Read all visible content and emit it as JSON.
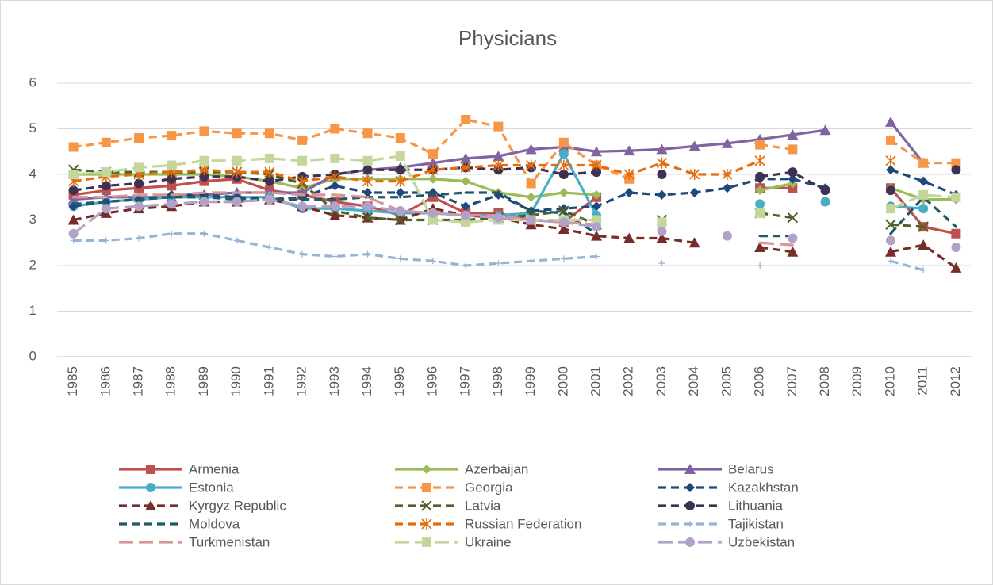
{
  "chart_data": {
    "type": "line",
    "title": "Physicians",
    "categories": [
      "1985",
      "1986",
      "1987",
      "1988",
      "1989",
      "1990",
      "1991",
      "1992",
      "1993",
      "1994",
      "1995",
      "1996",
      "1997",
      "1998",
      "1999",
      "2000",
      "2001",
      "2002",
      "2003",
      "2004",
      "2005",
      "2006",
      "2007",
      "2008",
      "2009",
      "2010",
      "2011",
      "2012"
    ],
    "ylim": [
      0,
      6
    ],
    "yticks": [
      0,
      1,
      2,
      3,
      4,
      5,
      6
    ],
    "grid": true,
    "legend": "bottom",
    "series": [
      {
        "name": "Armenia",
        "color": "#c0504d",
        "dash": "solid",
        "marker": "square",
        "values": [
          3.55,
          3.65,
          3.7,
          3.75,
          3.85,
          3.9,
          3.65,
          3.55,
          3.4,
          3.3,
          3.1,
          3.5,
          3.15,
          3.15,
          3.0,
          2.95,
          3.5,
          null,
          null,
          null,
          null,
          3.7,
          3.7,
          null,
          null,
          3.7,
          2.85,
          2.7
        ]
      },
      {
        "name": "Azerbaijan",
        "color": "#9bbb59",
        "dash": "solid",
        "marker": "diamond",
        "values": [
          4.0,
          4.0,
          4.0,
          4.0,
          4.0,
          3.95,
          3.85,
          3.7,
          3.9,
          3.9,
          3.9,
          3.9,
          3.85,
          3.6,
          3.5,
          3.6,
          3.55,
          null,
          null,
          null,
          null,
          3.65,
          3.8,
          null,
          null,
          3.7,
          3.45,
          3.45
        ]
      },
      {
        "name": "Belarus",
        "color": "#8064a2",
        "dash": "solid",
        "marker": "triangle",
        "values": [
          3.45,
          3.5,
          3.5,
          3.5,
          3.55,
          3.6,
          3.6,
          3.6,
          4.0,
          4.1,
          4.15,
          4.25,
          4.35,
          4.4,
          4.55,
          4.6,
          4.5,
          4.52,
          4.55,
          4.62,
          4.68,
          4.77,
          4.87,
          4.97,
          null,
          5.15,
          4.25,
          null
        ]
      },
      {
        "name": "Estonia",
        "color": "#4bacc6",
        "dash": "solid",
        "marker": "circle",
        "values": [
          3.3,
          3.4,
          3.45,
          3.5,
          3.5,
          3.5,
          3.5,
          3.25,
          3.25,
          3.2,
          3.15,
          3.15,
          3.1,
          3.1,
          3.15,
          4.45,
          3.1,
          null,
          null,
          null,
          null,
          3.35,
          null,
          3.4,
          null,
          3.3,
          3.25,
          null
        ]
      },
      {
        "name": "Georgia",
        "color": "#f79646",
        "dash": "dash",
        "marker": "square",
        "values": [
          4.6,
          4.7,
          4.8,
          4.85,
          4.95,
          4.9,
          4.9,
          4.75,
          5.0,
          4.9,
          4.8,
          4.45,
          5.2,
          5.05,
          3.8,
          4.7,
          4.2,
          3.9,
          null,
          null,
          null,
          4.65,
          4.55,
          null,
          null,
          4.75,
          4.25,
          4.25
        ]
      },
      {
        "name": "Kazakhstan",
        "color": "#1f497d",
        "dash": "dash",
        "marker": "diamond",
        "values": [
          3.3,
          3.4,
          3.45,
          3.55,
          3.55,
          3.5,
          3.45,
          3.5,
          3.75,
          3.6,
          3.6,
          3.6,
          3.3,
          3.55,
          3.2,
          3.25,
          3.3,
          3.6,
          3.55,
          3.6,
          3.7,
          3.9,
          3.9,
          3.7,
          null,
          4.1,
          3.85,
          3.55
        ]
      },
      {
        "name": "Kyrgyz Republic",
        "color": "#772c2a",
        "dash": "dash",
        "marker": "triangle",
        "values": [
          3.0,
          3.15,
          3.25,
          3.3,
          3.4,
          3.4,
          3.45,
          3.3,
          3.1,
          3.05,
          3.0,
          3.25,
          3.1,
          3.05,
          2.9,
          2.8,
          2.65,
          2.6,
          2.6,
          2.5,
          null,
          2.4,
          2.3,
          null,
          null,
          2.3,
          2.45,
          1.95
        ]
      },
      {
        "name": "Latvia",
        "color": "#4f6228",
        "dash": "dash",
        "marker": "x",
        "values": [
          4.1,
          4.05,
          4.05,
          4.05,
          4.05,
          4.05,
          4.0,
          3.8,
          3.2,
          3.05,
          3.0,
          3.0,
          3.0,
          3.05,
          3.1,
          3.2,
          2.9,
          null,
          3.0,
          null,
          null,
          3.15,
          3.05,
          null,
          null,
          2.9,
          2.85,
          null
        ]
      },
      {
        "name": "Lithuania",
        "color": "#3f3151",
        "dash": "dash",
        "marker": "circle",
        "values": [
          3.65,
          3.75,
          3.8,
          3.9,
          3.95,
          3.95,
          3.85,
          3.95,
          4.0,
          4.1,
          4.1,
          4.1,
          4.15,
          4.1,
          4.15,
          4.0,
          4.05,
          null,
          4.0,
          null,
          null,
          3.95,
          4.05,
          3.65,
          null,
          3.65,
          null,
          4.1
        ]
      },
      {
        "name": "Moldova",
        "color": "#215968",
        "dash": "dash",
        "marker": "none",
        "values": [
          3.35,
          3.4,
          3.45,
          3.5,
          3.5,
          3.45,
          3.45,
          3.45,
          3.45,
          3.5,
          3.5,
          3.55,
          3.6,
          3.6,
          3.2,
          3.15,
          2.7,
          null,
          null,
          null,
          null,
          2.65,
          2.65,
          null,
          null,
          2.7,
          3.5,
          2.85
        ]
      },
      {
        "name": "Russian Federation",
        "color": "#e46c0a",
        "dash": "dash",
        "marker": "star",
        "values": [
          3.85,
          3.95,
          4.0,
          4.05,
          4.1,
          4.05,
          4.05,
          3.85,
          3.95,
          3.85,
          3.85,
          4.1,
          4.15,
          4.2,
          4.2,
          4.2,
          4.2,
          4.0,
          4.25,
          4.0,
          4.0,
          4.3,
          null,
          null,
          null,
          4.3,
          null,
          null
        ]
      },
      {
        "name": "Tajikistan",
        "color": "#95b3d7",
        "dash": "dash",
        "marker": "plus",
        "values": [
          2.55,
          2.55,
          2.6,
          2.7,
          2.7,
          2.55,
          2.4,
          2.25,
          2.2,
          2.25,
          2.15,
          2.1,
          2.0,
          2.05,
          2.1,
          2.15,
          2.2,
          null,
          2.05,
          null,
          null,
          2.0,
          null,
          null,
          null,
          2.1,
          1.9,
          null
        ]
      },
      {
        "name": "Turkmenistan",
        "color": "#d99694",
        "dash": "longdash",
        "marker": "none",
        "values": [
          3.5,
          3.5,
          3.55,
          3.55,
          3.6,
          3.6,
          3.6,
          3.55,
          3.55,
          3.5,
          3.2,
          3.15,
          3.1,
          3.1,
          3.0,
          2.95,
          2.9,
          null,
          null,
          null,
          null,
          2.5,
          2.45,
          null,
          null,
          null,
          null,
          null
        ]
      },
      {
        "name": "Ukraine",
        "color": "#c3d69b",
        "dash": "longdash",
        "marker": "square",
        "values": [
          4.0,
          4.05,
          4.15,
          4.2,
          4.3,
          4.3,
          4.35,
          4.3,
          4.35,
          4.3,
          4.4,
          3.0,
          2.95,
          3.0,
          3.0,
          3.0,
          3.0,
          null,
          2.95,
          null,
          null,
          3.15,
          null,
          null,
          null,
          3.25,
          3.55,
          3.5
        ]
      },
      {
        "name": "Uzbekistan",
        "color": "#b3a2c7",
        "dash": "longdash",
        "marker": "circle",
        "values": [
          2.7,
          3.25,
          3.3,
          3.35,
          3.4,
          3.4,
          3.45,
          3.3,
          3.3,
          3.3,
          3.2,
          3.15,
          3.1,
          3.05,
          3.0,
          2.95,
          2.85,
          null,
          2.75,
          null,
          2.65,
          null,
          2.6,
          null,
          null,
          2.55,
          null,
          2.4
        ]
      }
    ]
  }
}
